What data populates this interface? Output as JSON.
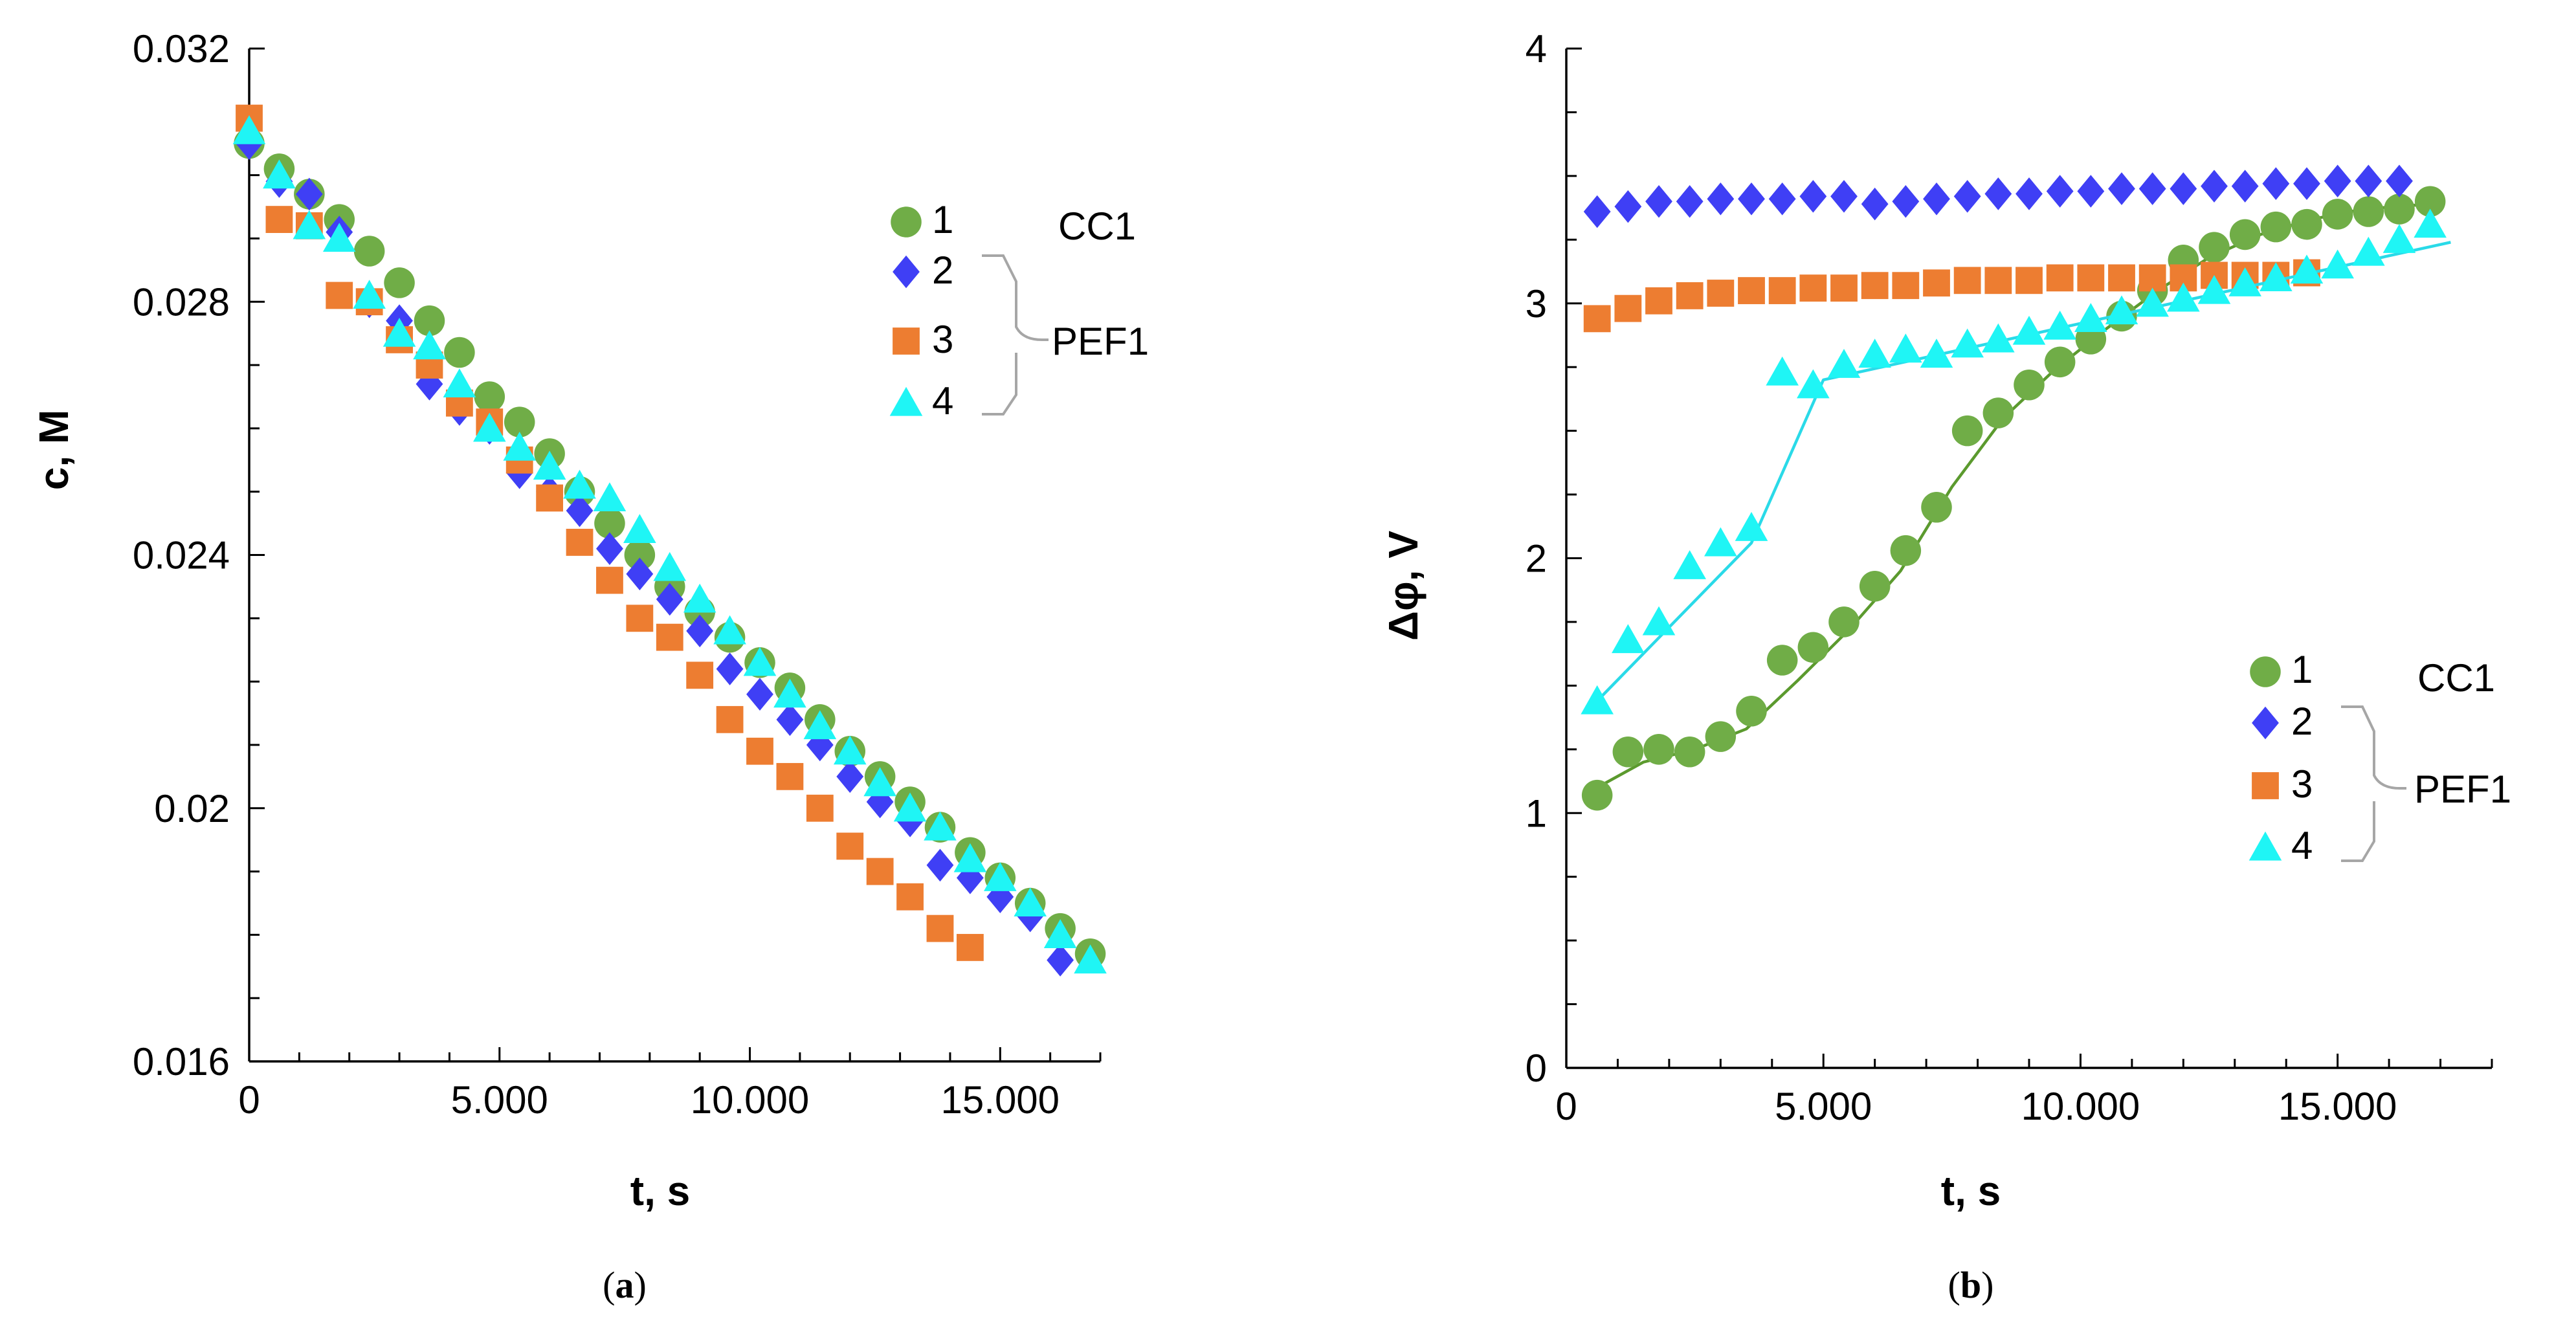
{
  "colors": {
    "s1": "#70AD47",
    "s1_line": "#5B9A2E",
    "s2": "#3F3FF5",
    "s3": "#ED7D31",
    "s4": "#1FF5F5",
    "s4_line": "#2ADAE8",
    "bracket": "#A6A6A6"
  },
  "captions": {
    "a": "a",
    "b": "b"
  },
  "chart_data": [
    {
      "type": "scatter",
      "panel": "a",
      "title": "",
      "xlabel": "t, s",
      "ylabel": "c, M",
      "xlim": [
        0,
        17000
      ],
      "ylim": [
        0.016,
        0.032
      ],
      "xticks": [
        0,
        5000,
        10000,
        15000
      ],
      "xticklabels": [
        "0",
        "5.000",
        "10.000",
        "15.000"
      ],
      "yticks": [
        0.016,
        0.02,
        0.024,
        0.028,
        0.032
      ],
      "yticklabels": [
        "0.016",
        "0.02",
        "0.024",
        "0.028",
        "0.032"
      ],
      "legend": {
        "position": "top-right",
        "entries": [
          {
            "label": "1",
            "series": 0
          },
          {
            "label": "2",
            "series": 1
          },
          {
            "label": "3",
            "series": 2
          },
          {
            "label": "4",
            "series": 3
          }
        ],
        "groups": [
          {
            "label": "CC1",
            "members": [
              "1"
            ]
          },
          {
            "label": "PEF1",
            "members": [
              "2",
              "3",
              "4"
            ]
          }
        ]
      },
      "series": [
        {
          "name": "1",
          "marker": "circle",
          "color": "#70AD47",
          "x": [
            0,
            600,
            1200,
            1800,
            2400,
            3000,
            3600,
            4200,
            4800,
            5400,
            6000,
            6600,
            7200,
            7800,
            8400,
            9000,
            9600,
            10200,
            10800,
            11400,
            12000,
            12600,
            13200,
            13800,
            14400,
            15000,
            15600,
            16200,
            16800
          ],
          "y": [
            0.0305,
            0.0301,
            0.0297,
            0.0293,
            0.0288,
            0.0283,
            0.0277,
            0.0272,
            0.0265,
            0.0261,
            0.0256,
            0.025,
            0.0245,
            0.024,
            0.0235,
            0.0231,
            0.0227,
            0.0223,
            0.0219,
            0.0214,
            0.0209,
            0.0205,
            0.0201,
            0.0197,
            0.0193,
            0.0189,
            0.0185,
            0.0181,
            0.0177
          ]
        },
        {
          "name": "2",
          "marker": "diamond",
          "color": "#3F3FF5",
          "x": [
            0,
            600,
            1200,
            1800,
            2400,
            3000,
            3600,
            4200,
            4800,
            5400,
            6000,
            6600,
            7200,
            7800,
            8400,
            9000,
            9600,
            10200,
            10800,
            11400,
            12000,
            12600,
            13200,
            13800,
            14400,
            15000,
            15600,
            16200
          ],
          "y": [
            0.0305,
            0.0299,
            0.0297,
            0.0291,
            0.028,
            0.0277,
            0.0267,
            0.0263,
            0.026,
            0.0253,
            0.025,
            0.0247,
            0.0241,
            0.0237,
            0.0233,
            0.0228,
            0.0222,
            0.0218,
            0.0214,
            0.021,
            0.0205,
            0.0201,
            0.0198,
            0.0191,
            0.0189,
            0.0186,
            0.0183,
            0.0176
          ]
        },
        {
          "name": "3",
          "marker": "square",
          "color": "#ED7D31",
          "x": [
            0,
            600,
            1200,
            1800,
            2400,
            3000,
            3600,
            4200,
            4800,
            5400,
            6000,
            6600,
            7200,
            7800,
            8400,
            9000,
            9600,
            10200,
            10800,
            11400,
            12000,
            12600,
            13200,
            13800,
            14400
          ],
          "y": [
            0.0309,
            0.0293,
            0.0292,
            0.0281,
            0.028,
            0.0274,
            0.027,
            0.0264,
            0.0261,
            0.0255,
            0.0249,
            0.0242,
            0.0236,
            0.023,
            0.0227,
            0.0221,
            0.0214,
            0.0209,
            0.0205,
            0.02,
            0.0194,
            0.019,
            0.0186,
            0.0181,
            0.0178
          ]
        },
        {
          "name": "4",
          "marker": "triangle",
          "color": "#1FF5F5",
          "x": [
            0,
            600,
            1200,
            1800,
            2400,
            3000,
            3600,
            4200,
            4800,
            5400,
            6000,
            6600,
            7200,
            7800,
            8400,
            9000,
            9600,
            10200,
            10800,
            11400,
            12000,
            12600,
            13200,
            13800,
            14400,
            15000,
            15600,
            16200,
            16800
          ],
          "y": [
            0.0307,
            0.03,
            0.0292,
            0.029,
            0.0281,
            0.0275,
            0.0273,
            0.0267,
            0.026,
            0.0257,
            0.0254,
            0.0251,
            0.0249,
            0.0244,
            0.0238,
            0.0233,
            0.0228,
            0.0223,
            0.0218,
            0.0213,
            0.0209,
            0.0204,
            0.02,
            0.0197,
            0.0192,
            0.0189,
            0.0185,
            0.018,
            0.0176
          ]
        }
      ]
    },
    {
      "type": "scatter",
      "panel": "b",
      "title": "",
      "xlabel": "t, s",
      "ylabel": "Δφ, V",
      "xlim": [
        0,
        18000
      ],
      "ylim": [
        0,
        4
      ],
      "xticks": [
        0,
        5000,
        10000,
        15000
      ],
      "xticklabels": [
        "0",
        "5.000",
        "10.000",
        "15.000"
      ],
      "yticks": [
        0,
        1,
        2,
        3,
        4
      ],
      "yticklabels": [
        "0",
        "1",
        "2",
        "3",
        "4"
      ],
      "legend": {
        "position": "bottom-right",
        "entries": [
          {
            "label": "1",
            "series": 0
          },
          {
            "label": "2",
            "series": 1
          },
          {
            "label": "3",
            "series": 2
          },
          {
            "label": "4",
            "series": 3
          }
        ],
        "groups": [
          {
            "label": "CC1",
            "members": [
              "1"
            ]
          },
          {
            "label": "PEF1",
            "members": [
              "2",
              "3",
              "4"
            ]
          }
        ]
      },
      "series": [
        {
          "name": "1",
          "marker": "circle",
          "color": "#70AD47",
          "x": [
            600,
            1200,
            1800,
            2400,
            3000,
            3600,
            4200,
            4800,
            5400,
            6000,
            6600,
            7200,
            7800,
            8400,
            9000,
            9600,
            10200,
            10800,
            11400,
            12000,
            12600,
            13200,
            13800,
            14400,
            15000,
            15600,
            16200,
            16800
          ],
          "y": [
            1.07,
            1.24,
            1.25,
            1.24,
            1.3,
            1.4,
            1.6,
            1.65,
            1.75,
            1.89,
            2.03,
            2.2,
            2.5,
            2.57,
            2.68,
            2.77,
            2.86,
            2.95,
            3.05,
            3.17,
            3.22,
            3.27,
            3.3,
            3.31,
            3.35,
            3.36,
            3.37,
            3.4
          ],
          "trendline": [
            [
              600,
              1.1
            ],
            [
              1500,
              1.2
            ],
            [
              2500,
              1.25
            ],
            [
              3500,
              1.33
            ],
            [
              4500,
              1.52
            ],
            [
              5500,
              1.72
            ],
            [
              6500,
              1.95
            ],
            [
              7500,
              2.28
            ],
            [
              8500,
              2.55
            ],
            [
              9500,
              2.74
            ],
            [
              10500,
              2.9
            ],
            [
              11500,
              3.05
            ],
            [
              12500,
              3.18
            ],
            [
              13500,
              3.27
            ],
            [
              14500,
              3.33
            ],
            [
              15500,
              3.37
            ],
            [
              16800,
              3.39
            ]
          ]
        },
        {
          "name": "2",
          "marker": "diamond",
          "color": "#3F3FF5",
          "x": [
            600,
            1200,
            1800,
            2400,
            3000,
            3600,
            4200,
            4800,
            5400,
            6000,
            6600,
            7200,
            7800,
            8400,
            9000,
            9600,
            10200,
            10800,
            11400,
            12000,
            12600,
            13200,
            13800,
            14400,
            15000,
            15600,
            16200
          ],
          "y": [
            3.36,
            3.38,
            3.4,
            3.4,
            3.41,
            3.41,
            3.41,
            3.42,
            3.42,
            3.39,
            3.4,
            3.41,
            3.42,
            3.43,
            3.43,
            3.44,
            3.44,
            3.45,
            3.45,
            3.45,
            3.46,
            3.46,
            3.47,
            3.47,
            3.48,
            3.48,
            3.48
          ]
        },
        {
          "name": "3",
          "marker": "square",
          "color": "#ED7D31",
          "x": [
            600,
            1200,
            1800,
            2400,
            3000,
            3600,
            4200,
            4800,
            5400,
            6000,
            6600,
            7200,
            7800,
            8400,
            9000,
            9600,
            10200,
            10800,
            11400,
            12000,
            12600,
            13200,
            13800,
            14400
          ],
          "y": [
            2.94,
            2.98,
            3.01,
            3.03,
            3.04,
            3.05,
            3.05,
            3.06,
            3.06,
            3.07,
            3.07,
            3.08,
            3.09,
            3.09,
            3.09,
            3.1,
            3.1,
            3.1,
            3.1,
            3.1,
            3.11,
            3.11,
            3.11,
            3.12
          ]
        },
        {
          "name": "4",
          "marker": "triangle",
          "color": "#1FF5F5",
          "x": [
            600,
            1200,
            1800,
            2400,
            3000,
            3600,
            4200,
            4800,
            5400,
            6000,
            6600,
            7200,
            7800,
            8400,
            9000,
            9600,
            10200,
            10800,
            11400,
            12000,
            12600,
            13200,
            13800,
            14400,
            15000,
            15600,
            16200,
            16800
          ],
          "y": [
            1.44,
            1.68,
            1.75,
            1.97,
            2.06,
            2.12,
            2.73,
            2.68,
            2.76,
            2.8,
            2.82,
            2.8,
            2.84,
            2.86,
            2.89,
            2.91,
            2.94,
            2.97,
            3.0,
            3.02,
            3.05,
            3.08,
            3.1,
            3.13,
            3.15,
            3.2,
            3.25,
            3.31
          ],
          "trendline": [
            [
              600,
              1.44
            ],
            [
              3600,
              2.06
            ],
            [
              5000,
              2.7
            ],
            [
              17200,
              3.24
            ]
          ]
        }
      ]
    }
  ]
}
